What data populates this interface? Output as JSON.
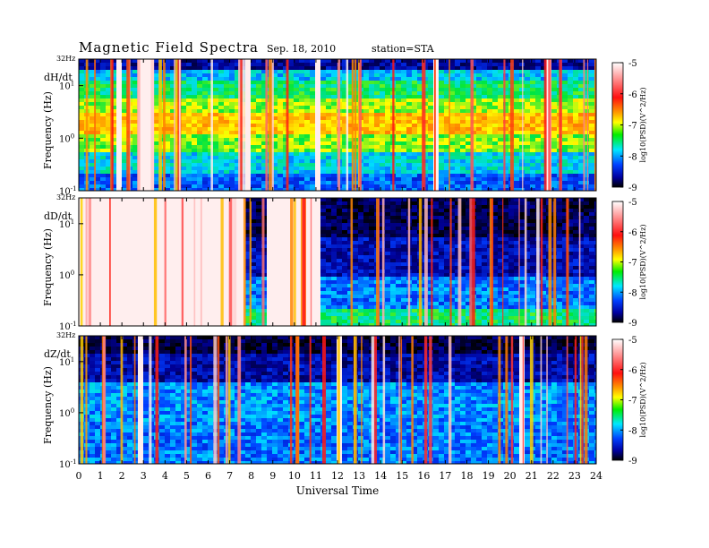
{
  "header": {
    "title": "Magnetic  Field  Spectra",
    "date": "Sep. 18, 2010",
    "station": "station=STA"
  },
  "chart_data": [
    {
      "type": "heatmap",
      "panel_label": "dH/dt",
      "ylabel": "Frequency  (Hz)",
      "xlabel": "",
      "y_scale": "log",
      "ylim": [
        0.1,
        32
      ],
      "y_tick_labels": [
        "32Hz",
        "10^1",
        "10^0",
        "10^-1"
      ],
      "xlim": [
        0,
        24
      ],
      "colorbar": {
        "label": "log10(PSD)(V^2/Hz)",
        "range": [
          -9,
          -5
        ],
        "ticks": [
          "-5",
          "-6",
          "-7",
          "-8",
          "-9"
        ]
      },
      "background": "noisy spectrogram: dark blue at top (~30 Hz), cyan/green mid band, orange/red band near 1-3 Hz, blue at low frequency; many white full-height gaps",
      "gaps_hours": [
        [
          1.5,
          1.75
        ],
        [
          2.7,
          3.3
        ],
        [
          7.7,
          7.95
        ],
        [
          10.9,
          11.0
        ],
        [
          16.4,
          16.45
        ],
        [
          21.6,
          21.9
        ]
      ]
    },
    {
      "type": "heatmap",
      "panel_label": "dD/dt",
      "ylabel": "Frequency  (Hz)",
      "xlabel": "",
      "y_scale": "log",
      "ylim": [
        0.1,
        32
      ],
      "y_tick_labels": [
        "32Hz",
        "10^1",
        "10^0",
        "10^-1"
      ],
      "xlim": [
        0,
        24
      ],
      "colorbar": {
        "label": "log10(PSD)(V^2/Hz)",
        "range": [
          -9,
          -5
        ],
        "ticks": [
          "-5",
          "-6",
          "-7",
          "-8",
          "-9"
        ]
      },
      "background": "mostly white (saturated) with dark blue high-frequency regions after hour 11; black block near hour 8",
      "gaps_hours": [
        [
          0.0,
          7.6
        ],
        [
          8.5,
          11.0
        ]
      ]
    },
    {
      "type": "heatmap",
      "panel_label": "dZ/dt",
      "ylabel": "Frequency  (Hz)",
      "xlabel": "Universal Time",
      "x_tick_labels": [
        "0",
        "1",
        "2",
        "3",
        "4",
        "5",
        "6",
        "7",
        "8",
        "9",
        "10",
        "11",
        "12",
        "13",
        "14",
        "15",
        "16",
        "17",
        "18",
        "19",
        "20",
        "21",
        "22",
        "23",
        "24"
      ],
      "y_scale": "log",
      "ylim": [
        0.1,
        32
      ],
      "y_tick_labels": [
        "32Hz",
        "10^1",
        "10^0",
        "10^-1"
      ],
      "xlim": [
        0,
        24
      ],
      "colorbar": {
        "label": "log10(PSD)(V^2/Hz)",
        "range": [
          -9,
          -5
        ],
        "ticks": [
          "-5",
          "-6",
          "-7",
          "-8",
          "-9"
        ]
      },
      "background": "dark blue/black at high frequency, blue-cyan mid and low frequency noise; white gaps",
      "gaps_hours": [
        [
          1.5,
          1.6
        ],
        [
          2.6,
          2.9
        ],
        [
          11.9,
          12.0
        ],
        [
          20.3,
          20.5
        ]
      ]
    }
  ]
}
